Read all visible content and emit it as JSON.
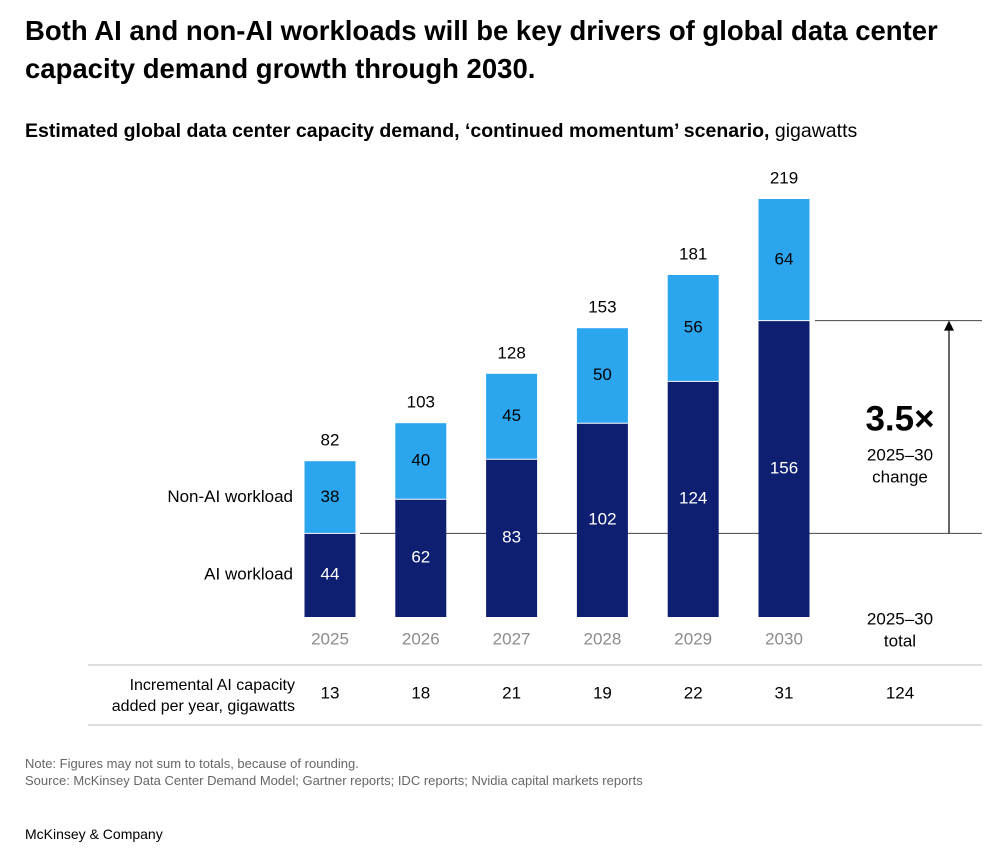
{
  "headline": "Both AI and non-AI workloads will be key drivers of global data center capacity demand growth through 2030.",
  "subtitle_bold": "Estimated global data center capacity demand, ‘continued momentum’ scenario,",
  "subtitle_unit": "gigawatts",
  "chart_data": {
    "type": "bar",
    "stacked": true,
    "categories": [
      "2025",
      "2026",
      "2027",
      "2028",
      "2029",
      "2030"
    ],
    "series": [
      {
        "name": "AI workload",
        "values": [
          44,
          62,
          83,
          102,
          124,
          156
        ],
        "color": "#0e1f72"
      },
      {
        "name": "Non-AI workload",
        "values": [
          38,
          40,
          45,
          50,
          56,
          64
        ],
        "color": "#2aa5ee"
      }
    ],
    "totals": [
      82,
      103,
      128,
      153,
      181,
      219
    ],
    "ylim": [
      0,
      219
    ],
    "legend_placement": "left",
    "annotation": {
      "value": "3.5×",
      "label": "2025–30\nchange"
    },
    "table": {
      "row_label": "Incremental AI capacity\nadded per year, gigawatts",
      "total_header": "2025–30\ntotal",
      "values": [
        "13",
        "18",
        "21",
        "19",
        "22",
        "31"
      ],
      "total": "124"
    }
  },
  "footnote": {
    "note": "Note: Figures may not sum to totals, because of rounding.",
    "source": "Source: McKinsey Data Center Demand Model; Gartner reports; IDC reports; Nvidia capital markets reports"
  },
  "brand": "McKinsey & Company"
}
